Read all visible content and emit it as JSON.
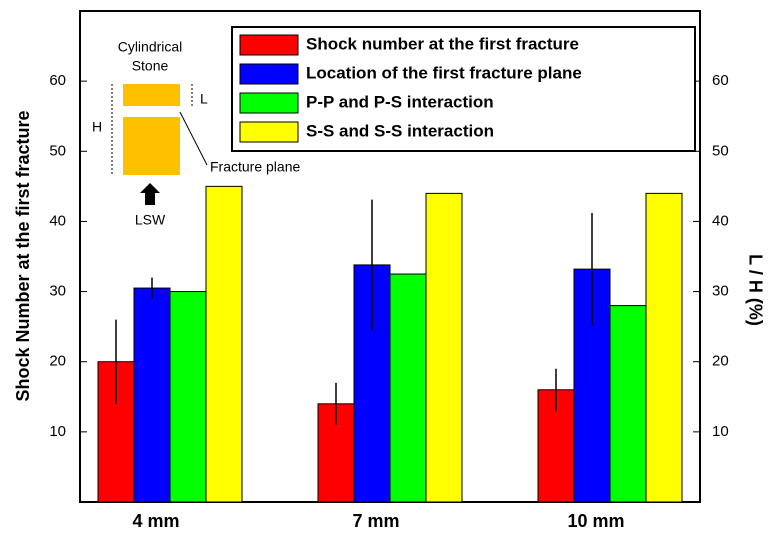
{
  "chart_data": {
    "type": "bar",
    "y_label": "Shock Number at the first fracture",
    "y2_label": "L / H (%)",
    "categories": [
      "4 mm",
      "7 mm",
      "10 mm"
    ],
    "series": [
      {
        "name": "Shock number at the first fracture",
        "color": "#ff0000",
        "values": [
          20,
          14,
          16
        ],
        "errors": [
          6,
          3,
          3
        ]
      },
      {
        "name": "Location of the first fracture plane",
        "color": "#0000ff",
        "values": [
          30.5,
          33.8,
          33.2
        ],
        "errors": [
          1.5,
          9.3,
          8
        ],
        "axis": "y2"
      },
      {
        "name": "P-P and P-S interaction",
        "color": "#00ff00",
        "values": [
          30,
          32.5,
          28
        ]
      },
      {
        "name": "S-S and S-S interaction",
        "color": "#ffff00",
        "values": [
          45,
          44,
          44
        ]
      }
    ],
    "ylim": [
      0,
      70
    ],
    "yticks": [
      10,
      20,
      30,
      40,
      50,
      60
    ],
    "y2lim": [
      0,
      70
    ],
    "y2ticks": [
      10,
      20,
      30,
      40,
      50,
      60
    ],
    "legend": "top-right",
    "annotations": [
      "Cylindrical",
      "Stone",
      "L",
      "H",
      "Fracture plane",
      "LSW"
    ]
  }
}
